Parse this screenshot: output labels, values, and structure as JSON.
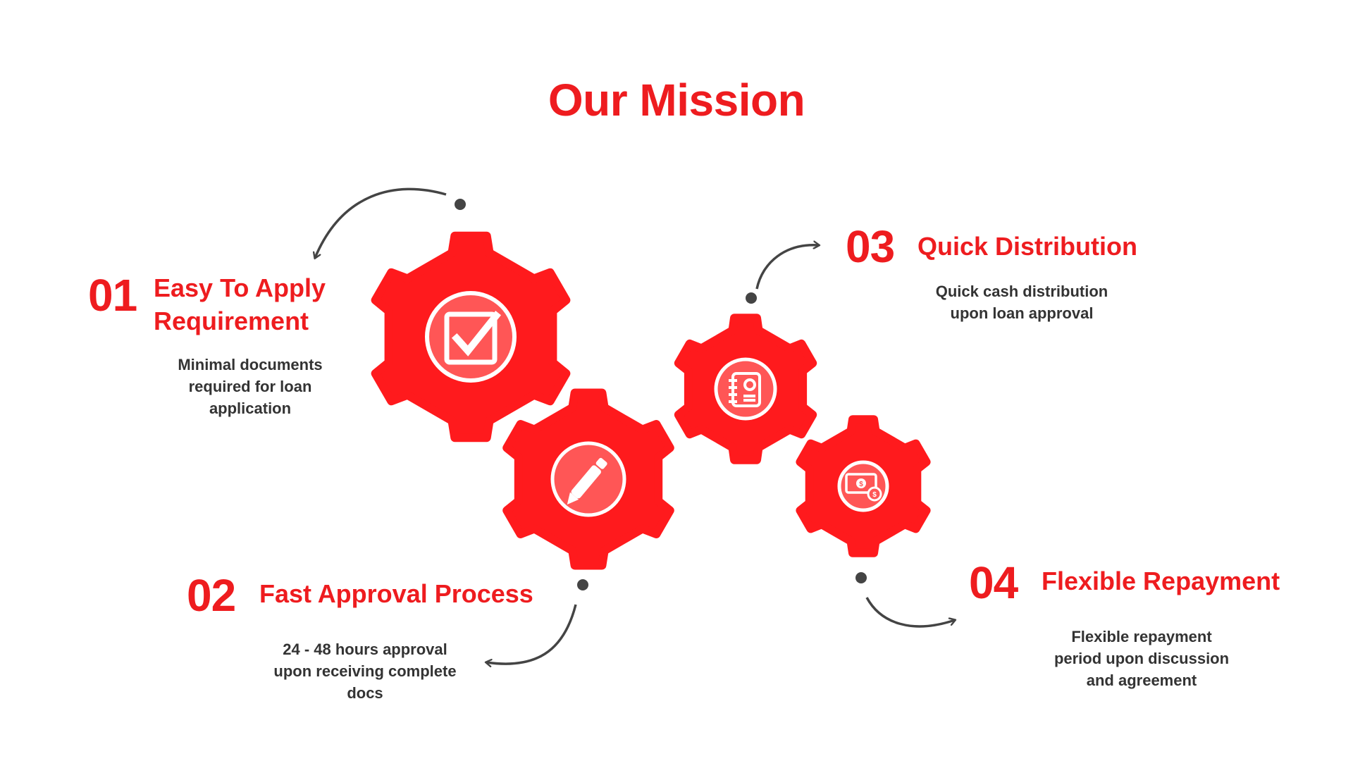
{
  "title": "Our Mission",
  "colors": {
    "accent": "#ee1c1f",
    "gear": "#ff1a1d",
    "arrow": "#444444",
    "text": "#333333"
  },
  "steps": [
    {
      "number": "01",
      "heading_line1": "Easy To Apply",
      "heading_line2": "Requirement",
      "desc": [
        "Minimal documents",
        "required for loan",
        "application"
      ],
      "icon": "checkbox-check-icon"
    },
    {
      "number": "02",
      "heading": "Fast Approval Process",
      "desc": [
        "24 - 48 hours approval",
        "upon receiving complete",
        "docs"
      ],
      "icon": "pen-icon"
    },
    {
      "number": "03",
      "heading": "Quick Distribution",
      "desc": [
        "Quick cash distribution",
        "upon loan approval"
      ],
      "icon": "notebook-icon"
    },
    {
      "number": "04",
      "heading": "Flexible Repayment",
      "desc": [
        "Flexible repayment",
        "period upon discussion",
        "and agreement"
      ],
      "icon": "cash-coins-icon"
    }
  ]
}
